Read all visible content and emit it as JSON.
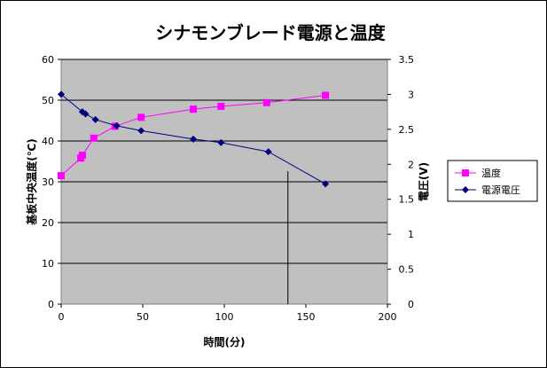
{
  "chart_data": {
    "type": "line",
    "title": "シナモンブレード電源と温度",
    "xlabel": "時間(分)",
    "ylabel_left": "基板中央温度(℃)",
    "ylabel_right": "電圧(V)",
    "xlim": [
      0,
      200
    ],
    "ylim_left": [
      0,
      60
    ],
    "ylim_right": [
      0,
      3.5
    ],
    "x_ticks": [
      "0",
      "50",
      "100",
      "150",
      "200"
    ],
    "y_left_ticks": [
      "0",
      "10",
      "20",
      "30",
      "40",
      "50",
      "60"
    ],
    "y_right_ticks": [
      "0",
      "0.5",
      "1",
      "1.5",
      "2",
      "2.5",
      "3",
      "3.5"
    ],
    "grid": true,
    "legend_position": "right",
    "series": [
      {
        "name": "温度",
        "axis": "left",
        "color": "#ff00ff",
        "marker": "square",
        "x": [
          0,
          12,
          13,
          20,
          33,
          49,
          81,
          98,
          126,
          162
        ],
        "y": [
          31.5,
          35.8,
          36.5,
          40.7,
          43.6,
          45.8,
          47.8,
          48.5,
          49.4,
          51.2
        ]
      },
      {
        "name": "電源電圧",
        "axis": "right",
        "color": "#000080",
        "marker": "diamond",
        "x": [
          0,
          13,
          15,
          21,
          34,
          49,
          81,
          98,
          127,
          162
        ],
        "y": [
          3.0,
          2.75,
          2.72,
          2.64,
          2.55,
          2.48,
          2.36,
          2.31,
          2.18,
          1.72
        ]
      }
    ]
  }
}
